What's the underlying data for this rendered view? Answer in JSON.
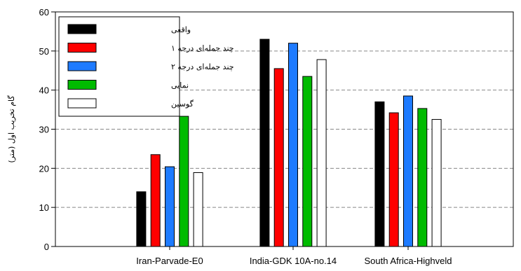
{
  "chart_data": {
    "type": "bar",
    "ylabel": "گام تخریب اول (متر)",
    "ylim": [
      0,
      60
    ],
    "yticks": [
      0,
      10,
      20,
      30,
      40,
      50,
      60
    ],
    "grid": "horizontal-dashed",
    "legend_position": "top-left",
    "categories": [
      "Iran-Parvade-E0",
      "India-GDK 10A-no.14",
      "South Africa-Highveld"
    ],
    "series": [
      {
        "name": "واقعی",
        "color": "#000000",
        "values": [
          14,
          53,
          37
        ]
      },
      {
        "name": "چند جمله‌ای درجه ۱",
        "color": "#ff0000",
        "values": [
          23.5,
          45.5,
          34.2
        ]
      },
      {
        "name": "چند جمله‌ای درجه ۲",
        "color": "#1e7bff",
        "values": [
          20.4,
          52,
          38.5
        ]
      },
      {
        "name": "نمایی",
        "color": "#00bb00",
        "values": [
          33.3,
          43.5,
          35.3
        ]
      },
      {
        "name": "گوسین",
        "color": "#ffffff",
        "values": [
          18.9,
          47.8,
          32.5
        ]
      }
    ]
  }
}
